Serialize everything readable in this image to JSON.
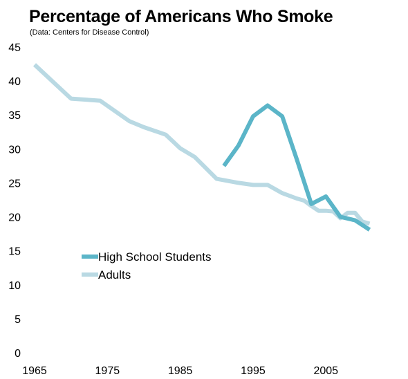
{
  "chart_data": {
    "type": "line",
    "title": "Percentage of Americans Who Smoke",
    "subtitle": "(Data: Centers for Disease Control)",
    "xlabel": "",
    "ylabel": "",
    "xlim": [
      1965,
      2012
    ],
    "ylim": [
      0,
      45
    ],
    "x_ticks": [
      1965,
      1975,
      1985,
      1995,
      2005
    ],
    "y_ticks": [
      0,
      5,
      10,
      15,
      20,
      25,
      30,
      35,
      40,
      45
    ],
    "grid": false,
    "legend_position": "bottom-left",
    "series": [
      {
        "name": "High School Students",
        "color": "#5bb5c8",
        "points": [
          [
            1991,
            27.5
          ],
          [
            1993,
            30.5
          ],
          [
            1995,
            34.8
          ],
          [
            1997,
            36.4
          ],
          [
            1999,
            34.8
          ],
          [
            2001,
            28.5
          ],
          [
            2003,
            21.9
          ],
          [
            2005,
            23.0
          ],
          [
            2007,
            20.0
          ],
          [
            2009,
            19.5
          ],
          [
            2011,
            18.1
          ]
        ]
      },
      {
        "name": "Adults",
        "color": "#b9d9e3",
        "points": [
          [
            1965,
            42.4
          ],
          [
            1970,
            37.4
          ],
          [
            1974,
            37.1
          ],
          [
            1978,
            34.1
          ],
          [
            1980,
            33.2
          ],
          [
            1983,
            32.1
          ],
          [
            1985,
            30.1
          ],
          [
            1987,
            28.8
          ],
          [
            1990,
            25.6
          ],
          [
            1993,
            25.0
          ],
          [
            1995,
            24.7
          ],
          [
            1997,
            24.7
          ],
          [
            1999,
            23.5
          ],
          [
            2001,
            22.7
          ],
          [
            2002,
            22.4
          ],
          [
            2003,
            21.6
          ],
          [
            2004,
            20.9
          ],
          [
            2005,
            20.9
          ],
          [
            2006,
            20.8
          ],
          [
            2007,
            19.8
          ],
          [
            2008,
            20.6
          ],
          [
            2009,
            20.6
          ],
          [
            2010,
            19.3
          ],
          [
            2011,
            19.0
          ]
        ]
      }
    ]
  }
}
